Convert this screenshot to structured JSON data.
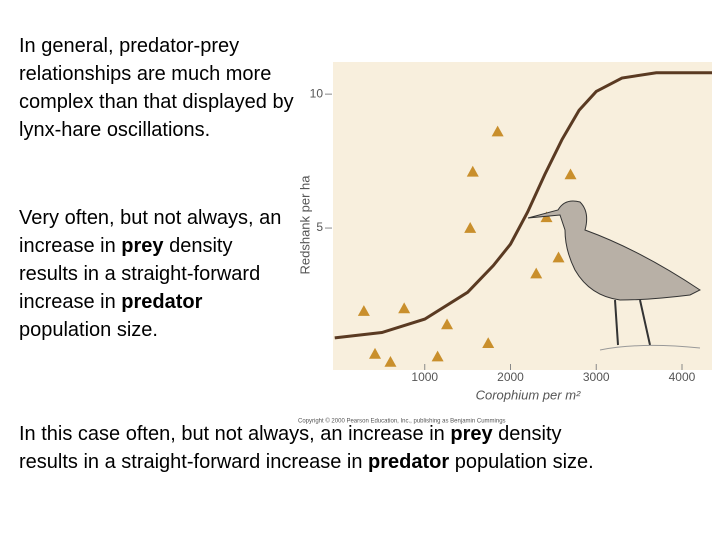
{
  "paragraphs": [
    {
      "runs": [
        {
          "text": "In general, predator-prey relationships are much more complex than that displayed by lynx-hare oscillations.",
          "bold": false
        }
      ]
    },
    {
      "runs": [
        {
          "text": "Very often, but not always, an increase in ",
          "bold": false
        },
        {
          "text": "prey",
          "bold": true
        },
        {
          "text": " density results in a straight-forward increase in ",
          "bold": false
        },
        {
          "text": "predator",
          "bold": true
        },
        {
          "text": " population size.",
          "bold": false
        }
      ]
    },
    {
      "runs": [
        {
          "text": "In this case often, but not always, an increase in ",
          "bold": false
        },
        {
          "text": "prey",
          "bold": true
        },
        {
          "text": " density results in a straight-forward increase in ",
          "bold": false
        },
        {
          "text": "predator",
          "bold": true
        },
        {
          "text": " population size.",
          "bold": false
        }
      ]
    }
  ],
  "chart_data": {
    "type": "scatter",
    "x_label": "Corophium per m²",
    "y_label": "Redshank per ha",
    "note": "Copyright © 2000 Pearson Education, Inc., publishing as Benjamin Cummings",
    "points": {
      "color": "#c98f2c",
      "x": [
        290,
        420,
        600,
        760,
        1150,
        1260,
        1530,
        1560,
        1740,
        1850,
        2300,
        2420,
        2560,
        2700
      ],
      "y": [
        1.9,
        0.3,
        0.0,
        2.0,
        0.2,
        1.4,
        5.0,
        7.1,
        0.7,
        8.6,
        3.3,
        5.4,
        3.9,
        7.0
      ]
    },
    "curve": {
      "color": "#5a3a22",
      "x": [
        -50,
        500,
        1000,
        1500,
        1800,
        2000,
        2200,
        2400,
        2600,
        2800,
        3000,
        3300,
        3700,
        4350
      ],
      "y": [
        0.9,
        1.1,
        1.6,
        2.6,
        3.6,
        4.4,
        5.6,
        7.0,
        8.3,
        9.4,
        10.1,
        10.6,
        10.8,
        10.8
      ]
    },
    "xlim": [
      -70,
      4350
    ],
    "ylim": [
      -0.3,
      11.2
    ],
    "xticks": [
      1000,
      2000,
      3000,
      4000
    ],
    "yticks": [
      5,
      10
    ],
    "background": "#f8efdd"
  }
}
